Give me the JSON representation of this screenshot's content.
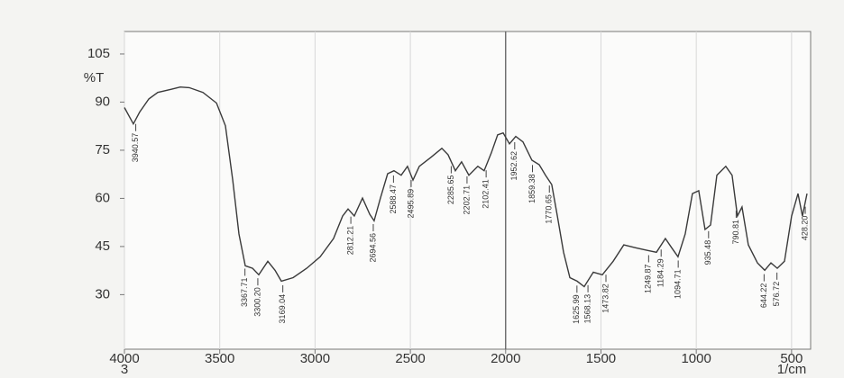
{
  "chart_data": {
    "type": "line",
    "y_label": "%T",
    "x_label": "1/cm",
    "x_note": "3",
    "color": "#3a3a3a",
    "grid": true,
    "vline": 2000,
    "xlim": [
      4000,
      400
    ],
    "ylim": [
      13,
      112
    ],
    "xticks": [
      4000,
      3500,
      3000,
      2500,
      2000,
      1500,
      1000,
      500
    ],
    "yticks": [
      30,
      45,
      60,
      75,
      90,
      105
    ],
    "x": [
      4000,
      3953,
      3920,
      3872,
      3825,
      3754,
      3707,
      3660,
      3588,
      3517,
      3470,
      3432,
      3399,
      3366,
      3328,
      3295,
      3248,
      3210,
      3177,
      3115,
      3044,
      2973,
      2903,
      2855,
      2827,
      2794,
      2751,
      2713,
      2690,
      2657,
      2619,
      2586,
      2548,
      2515,
      2486,
      2453,
      2392,
      2335,
      2302,
      2264,
      2231,
      2193,
      2146,
      2113,
      2075,
      2042,
      2013,
      1980,
      1947,
      1909,
      1862,
      1824,
      1791,
      1758,
      1729,
      1696,
      1663,
      1625,
      1588,
      1540,
      1493,
      1436,
      1380,
      1318,
      1257,
      1209,
      1162,
      1129,
      1096,
      1058,
      1020,
      987,
      954,
      925,
      892,
      845,
      812,
      784,
      760,
      727,
      679,
      641,
      608,
      575,
      537,
      500,
      466,
      443,
      419
    ],
    "values": [
      88.3,
      83.2,
      86.9,
      91,
      93,
      94,
      94.7,
      94.5,
      93,
      89.7,
      82.6,
      65.7,
      48.9,
      39,
      38.2,
      36.2,
      40.4,
      37.6,
      34.2,
      35.3,
      38.2,
      41.8,
      47.5,
      54.5,
      56.7,
      54.5,
      60.1,
      55,
      53,
      60.1,
      67.7,
      68.6,
      67.2,
      70,
      65.7,
      70,
      72.8,
      75.6,
      73.6,
      68.6,
      71.4,
      67.2,
      70,
      68.6,
      74.2,
      79.8,
      80.4,
      77,
      79.3,
      77.6,
      71.9,
      70.5,
      67.2,
      64.3,
      54.5,
      43.2,
      35.3,
      34.2,
      32.5,
      37,
      36.2,
      40.4,
      45.5,
      44.6,
      43.8,
      43.2,
      47.5,
      44.6,
      41.8,
      48.9,
      61.5,
      62.4,
      50.3,
      51.7,
      67.2,
      70,
      67.2,
      54.5,
      57.3,
      45.5,
      39.9,
      37.6,
      39.9,
      38.2,
      40.4,
      54.5,
      61.5,
      54.5,
      61.5
    ],
    "peaks": [
      {
        "value": 3940.57,
        "label": "3940.57"
      },
      {
        "value": 3367.71,
        "label": "3367.71"
      },
      {
        "value": 3300.2,
        "label": "3300.20"
      },
      {
        "value": 3169.04,
        "label": "3169.04"
      },
      {
        "value": 2812.21,
        "label": "2812.21"
      },
      {
        "value": 2694.56,
        "label": "2694.56"
      },
      {
        "value": 2588.47,
        "label": "2588.47"
      },
      {
        "value": 2495.89,
        "label": "2495.89"
      },
      {
        "value": 2285.65,
        "label": "2285.65"
      },
      {
        "value": 2202.71,
        "label": "2202.71"
      },
      {
        "value": 2102.41,
        "label": "2102.41"
      },
      {
        "value": 1952.62,
        "label": "1952.62"
      },
      {
        "value": 1859.38,
        "label": "1859.38"
      },
      {
        "value": 1770.65,
        "label": "1770.65"
      },
      {
        "value": 1625.99,
        "label": "1625.99"
      },
      {
        "value": 1568.13,
        "label": "1568.13"
      },
      {
        "value": 1473.82,
        "label": "1473.82"
      },
      {
        "value": 1249.87,
        "label": "1249.87"
      },
      {
        "value": 1184.29,
        "label": "1184.29"
      },
      {
        "value": 1094.71,
        "label": "1094.71"
      },
      {
        "value": 935.48,
        "label": "935.48"
      },
      {
        "value": 790.81,
        "label": "790.81"
      },
      {
        "value": 644.22,
        "label": "644.22"
      },
      {
        "value": 576.72,
        "label": "576.72"
      },
      {
        "value": 428.2,
        "label": "428.20"
      }
    ]
  }
}
